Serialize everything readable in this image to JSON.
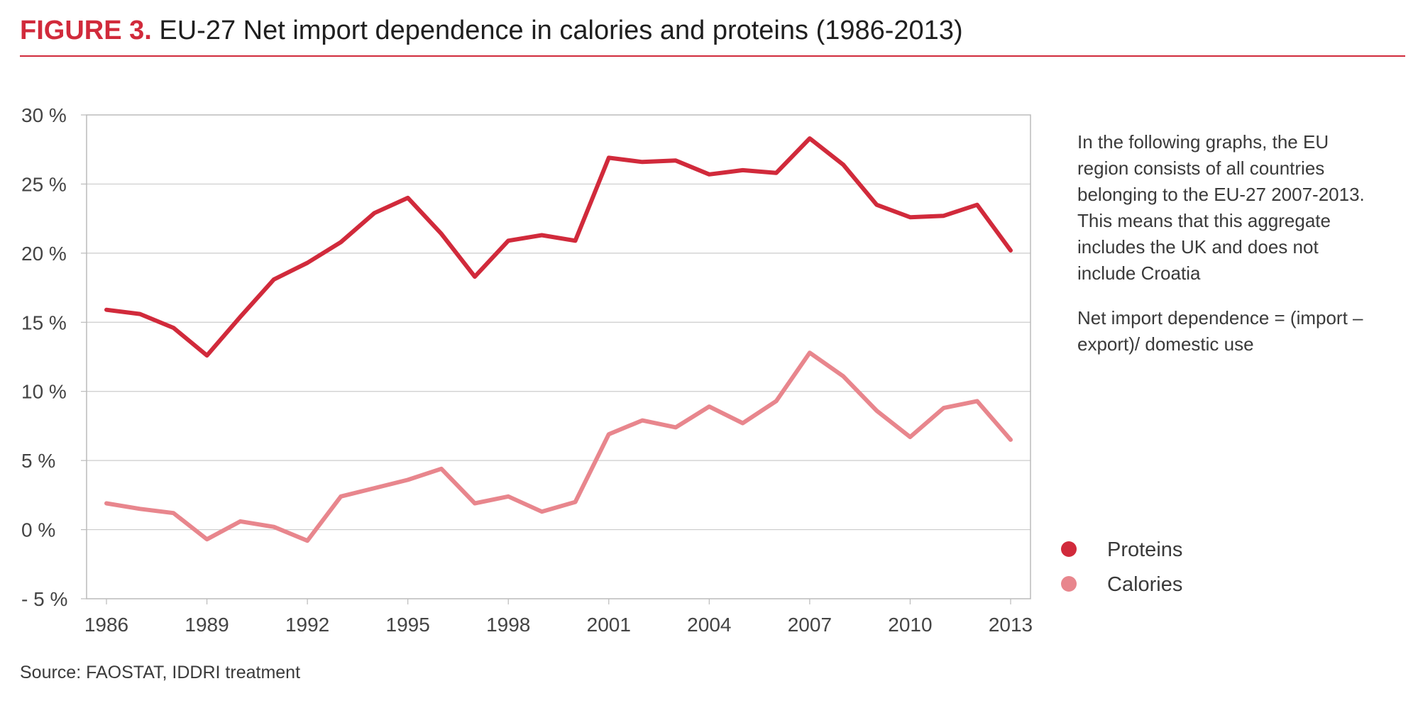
{
  "header": {
    "figure_label": "FIGURE 3.",
    "title": "EU-27 Net import dependence in calories and proteins (1986-2013)"
  },
  "notes": [
    "In the following graphs, the EU region consists of all countries belonging to the EU-27 2007-2013. This means that this aggregate includes the UK and does not include Croatia",
    "Net import dependence = (import – export)/ domestic use"
  ],
  "source": "Source: FAOSTAT, IDDRI treatment",
  "colors": {
    "proteins": "#d12a3b",
    "calories": "#e8868d",
    "grid": "#cccccc",
    "axis": "#bbbbbb"
  },
  "chart_data": {
    "type": "line",
    "title": "EU-27 Net import dependence in calories and proteins (1986-2013)",
    "xlabel": "",
    "ylabel": "",
    "x": [
      1986,
      1987,
      1988,
      1989,
      1990,
      1991,
      1992,
      1993,
      1994,
      1995,
      1996,
      1997,
      1998,
      1999,
      2000,
      2001,
      2002,
      2003,
      2004,
      2005,
      2006,
      2007,
      2008,
      2009,
      2010,
      2011,
      2012,
      2013
    ],
    "x_ticks": [
      1986,
      1989,
      1992,
      1995,
      1998,
      2001,
      2004,
      2007,
      2010,
      2013
    ],
    "x_tick_labels": [
      "1986",
      "1989",
      "1992",
      "1995",
      "1998",
      "2001",
      "2004",
      "2007",
      "2010",
      "2013"
    ],
    "ylim": [
      -5,
      30
    ],
    "y_ticks": [
      30,
      25,
      20,
      15,
      10,
      5,
      0,
      -5
    ],
    "y_tick_labels": [
      "30 %",
      "25 %",
      "20 %",
      "15 %",
      "10 %",
      "5 %",
      "0 %",
      "- 5 %"
    ],
    "grid": true,
    "legend_position": "bottom-right",
    "series": [
      {
        "name": "Proteins",
        "values": [
          15.9,
          15.6,
          14.6,
          12.6,
          15.4,
          18.1,
          19.3,
          20.8,
          22.9,
          24.0,
          21.4,
          18.3,
          20.9,
          21.3,
          20.9,
          26.9,
          26.6,
          26.7,
          25.7,
          26.0,
          25.8,
          28.3,
          26.4,
          23.5,
          22.6,
          22.7,
          23.5,
          20.2
        ]
      },
      {
        "name": "Calories",
        "values": [
          1.9,
          1.5,
          1.2,
          -0.7,
          0.6,
          0.2,
          -0.8,
          2.4,
          3.0,
          3.6,
          4.4,
          1.9,
          2.4,
          1.3,
          2.0,
          6.9,
          7.9,
          7.4,
          8.9,
          7.7,
          9.3,
          12.8,
          11.1,
          8.6,
          6.7,
          8.8,
          9.3,
          6.5
        ]
      }
    ]
  }
}
